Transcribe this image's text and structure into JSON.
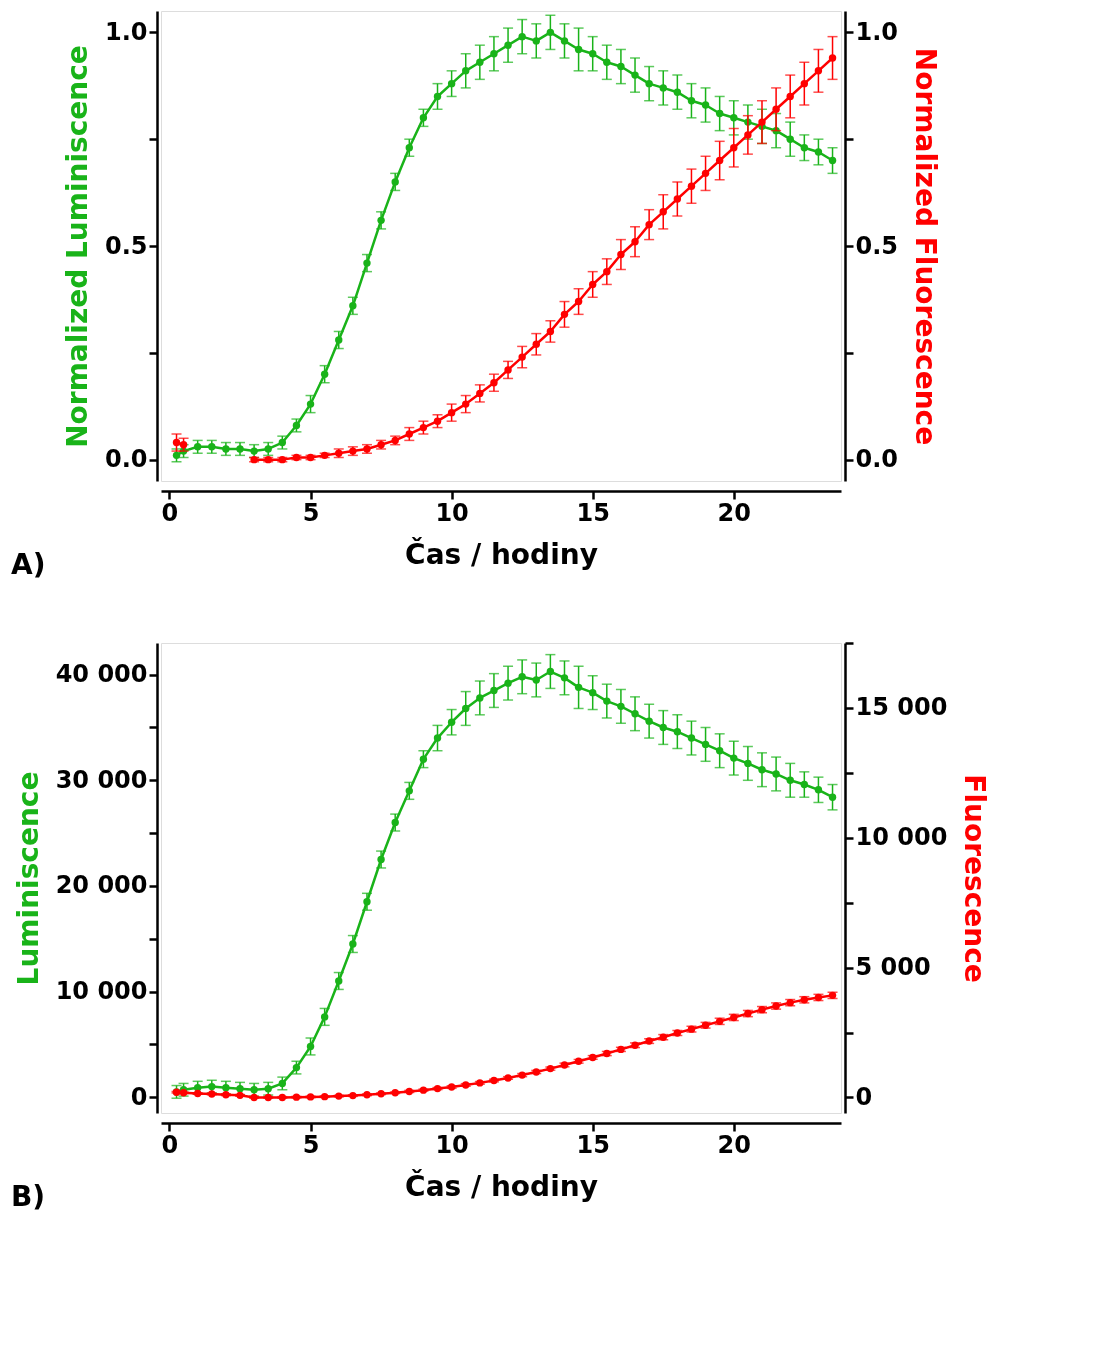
{
  "chart_data": [
    {
      "type": "line",
      "xlabel": "Čas / hodiny",
      "ylabel": "Normalized Luminiscence",
      "y2label": "Normalized Fluorescence",
      "annotations": [
        "A)"
      ],
      "x": [
        0.25,
        0.5,
        1,
        1.5,
        2,
        2.5,
        3,
        3.5,
        4,
        4.5,
        5,
        5.5,
        6,
        6.5,
        7,
        7.5,
        8,
        8.5,
        9,
        9.5,
        10,
        10.5,
        11,
        11.5,
        12,
        12.5,
        13,
        13.5,
        14,
        14.5,
        15,
        15.5,
        16,
        16.5,
        17,
        17.5,
        18,
        18.5,
        19,
        19.5,
        20,
        20.5,
        21,
        21.5,
        22,
        22.5,
        23,
        23.5
      ],
      "xlim": [
        -0.3,
        23.8
      ],
      "xticks": [
        0,
        5,
        10,
        15,
        20
      ],
      "ylim": [
        -0.05,
        1.05
      ],
      "yticks": [
        {
          "value": 0,
          "label": "0.0"
        },
        {
          "value": 0.25,
          "label": null
        },
        {
          "value": 0.5,
          "label": "0.5"
        },
        {
          "value": 0.75,
          "label": null
        },
        {
          "value": 1,
          "label": "1.0"
        }
      ],
      "y2lim": [
        -0.05,
        1.05
      ],
      "y2ticks": [
        {
          "value": 0,
          "label": "0.0"
        },
        {
          "value": 0.25,
          "label": null
        },
        {
          "value": 0.5,
          "label": "0.5"
        },
        {
          "value": 0.75,
          "label": null
        },
        {
          "value": 1,
          "label": "1.0"
        }
      ],
      "grid": false,
      "marker": "circle",
      "line_style": "solid",
      "series": [
        {
          "color": "#19b319",
          "axis": "y",
          "values": [
            0.01,
            0.02,
            0.03,
            0.03,
            0.025,
            0.025,
            0.02,
            0.025,
            0.04,
            0.08,
            0.13,
            0.2,
            0.28,
            0.36,
            0.46,
            0.56,
            0.65,
            0.73,
            0.8,
            0.85,
            0.88,
            0.91,
            0.93,
            0.95,
            0.97,
            0.99,
            0.98,
            1.0,
            0.98,
            0.96,
            0.95,
            0.93,
            0.92,
            0.9,
            0.88,
            0.87,
            0.86,
            0.84,
            0.83,
            0.81,
            0.8,
            0.79,
            0.78,
            0.77,
            0.75,
            0.73,
            0.72,
            0.7
          ],
          "errors": [
            0.015,
            0.015,
            0.015,
            0.015,
            0.015,
            0.015,
            0.015,
            0.015,
            0.015,
            0.015,
            0.02,
            0.02,
            0.02,
            0.02,
            0.02,
            0.02,
            0.02,
            0.02,
            0.02,
            0.03,
            0.03,
            0.04,
            0.04,
            0.04,
            0.04,
            0.04,
            0.04,
            0.04,
            0.04,
            0.05,
            0.04,
            0.04,
            0.04,
            0.04,
            0.04,
            0.04,
            0.04,
            0.04,
            0.04,
            0.04,
            0.04,
            0.04,
            0.04,
            0.04,
            0.04,
            0.03,
            0.03,
            0.03
          ]
        },
        {
          "color": "#ff0000",
          "axis": "y2",
          "values": [
            0.04,
            0.035,
            null,
            null,
            null,
            null,
            0.0,
            0.0,
            0.0,
            0.005,
            0.005,
            0.01,
            0.015,
            0.02,
            0.025,
            0.035,
            0.045,
            0.06,
            0.075,
            0.09,
            0.11,
            0.13,
            0.155,
            0.18,
            0.21,
            0.24,
            0.27,
            0.3,
            0.34,
            0.37,
            0.41,
            0.44,
            0.48,
            0.51,
            0.55,
            0.58,
            0.61,
            0.64,
            0.67,
            0.7,
            0.73,
            0.76,
            0.79,
            0.82,
            0.85,
            0.88,
            0.91,
            0.94
          ],
          "errors": [
            0.02,
            0.015,
            null,
            null,
            null,
            null,
            0.005,
            0.005,
            0.005,
            0.005,
            0.005,
            0.005,
            0.01,
            0.01,
            0.01,
            0.01,
            0.01,
            0.015,
            0.015,
            0.015,
            0.02,
            0.02,
            0.02,
            0.02,
            0.02,
            0.025,
            0.025,
            0.025,
            0.03,
            0.03,
            0.03,
            0.03,
            0.035,
            0.035,
            0.035,
            0.04,
            0.04,
            0.04,
            0.04,
            0.045,
            0.045,
            0.045,
            0.05,
            0.05,
            0.05,
            0.05,
            0.05,
            0.05
          ]
        }
      ]
    },
    {
      "type": "line",
      "xlabel": "Čas / hodiny",
      "ylabel": "Luminiscence",
      "y2label": "Fluorescence",
      "annotations": [
        "B)"
      ],
      "x": [
        0.25,
        0.5,
        1,
        1.5,
        2,
        2.5,
        3,
        3.5,
        4,
        4.5,
        5,
        5.5,
        6,
        6.5,
        7,
        7.5,
        8,
        8.5,
        9,
        9.5,
        10,
        10.5,
        11,
        11.5,
        12,
        12.5,
        13,
        13.5,
        14,
        14.5,
        15,
        15.5,
        16,
        16.5,
        17,
        17.5,
        18,
        18.5,
        19,
        19.5,
        20,
        20.5,
        21,
        21.5,
        22,
        22.5,
        23,
        23.5
      ],
      "xlim": [
        -0.3,
        23.8
      ],
      "xticks": [
        0,
        5,
        10,
        15,
        20
      ],
      "ylim": [
        -1500,
        43000
      ],
      "yticks": [
        0,
        {
          "value": 5000,
          "label": null
        },
        {
          "value": 10000,
          "label": "10 000"
        },
        {
          "value": 15000,
          "label": null
        },
        {
          "value": 20000,
          "label": "20 000"
        },
        {
          "value": 25000,
          "label": null
        },
        {
          "value": 30000,
          "label": "30 000"
        },
        {
          "value": 35000,
          "label": null
        },
        {
          "value": 40000,
          "label": "40 000"
        }
      ],
      "y2lim": [
        -600,
        17500
      ],
      "y2ticks": [
        0,
        {
          "value": 2500,
          "label": null
        },
        {
          "value": 5000,
          "label": "5 000"
        },
        {
          "value": 7500,
          "label": null
        },
        {
          "value": 10000,
          "label": "10 000"
        },
        {
          "value": 12500,
          "label": null
        },
        {
          "value": 15000,
          "label": "15 000"
        },
        {
          "value": 17500,
          "label": null
        }
      ],
      "grid": false,
      "marker": "circle",
      "line_style": "solid",
      "series": [
        {
          "color": "#19b319",
          "axis": "y",
          "values": [
            500,
            700,
            900,
            1000,
            900,
            800,
            700,
            800,
            1300,
            2800,
            4800,
            7600,
            11000,
            14500,
            18500,
            22500,
            26000,
            29000,
            32000,
            34000,
            35500,
            36800,
            37800,
            38500,
            39200,
            39800,
            39500,
            40300,
            39700,
            38800,
            38300,
            37500,
            37000,
            36300,
            35600,
            35000,
            34600,
            34000,
            33400,
            32800,
            32100,
            31600,
            31000,
            30600,
            30000,
            29600,
            29100,
            28400
          ],
          "errors": [
            600,
            600,
            600,
            600,
            600,
            600,
            600,
            600,
            600,
            600,
            800,
            800,
            800,
            800,
            800,
            800,
            800,
            800,
            800,
            1200,
            1200,
            1600,
            1600,
            1600,
            1600,
            1600,
            1600,
            1600,
            1600,
            2000,
            1600,
            1600,
            1600,
            1600,
            1600,
            1600,
            1600,
            1600,
            1600,
            1600,
            1600,
            1600,
            1600,
            1600,
            1600,
            1200,
            1200,
            1200
          ]
        },
        {
          "color": "#ff0000",
          "axis": "y2",
          "values": [
            200,
            180,
            150,
            130,
            100,
            80,
            0,
            0,
            0,
            10,
            20,
            30,
            50,
            70,
            100,
            140,
            180,
            230,
            280,
            340,
            400,
            480,
            560,
            650,
            750,
            860,
            980,
            1110,
            1250,
            1390,
            1540,
            1690,
            1850,
            2010,
            2170,
            2320,
            2480,
            2630,
            2780,
            2930,
            3080,
            3230,
            3380,
            3520,
            3650,
            3760,
            3850,
            3930
          ],
          "errors": [
            30,
            30,
            30,
            30,
            30,
            30,
            30,
            30,
            30,
            30,
            30,
            30,
            30,
            30,
            30,
            30,
            30,
            40,
            40,
            40,
            50,
            50,
            50,
            50,
            50,
            60,
            60,
            60,
            70,
            70,
            70,
            80,
            80,
            90,
            90,
            100,
            100,
            110,
            110,
            120,
            120,
            120,
            120,
            120,
            120,
            120,
            120,
            120
          ]
        }
      ]
    }
  ]
}
